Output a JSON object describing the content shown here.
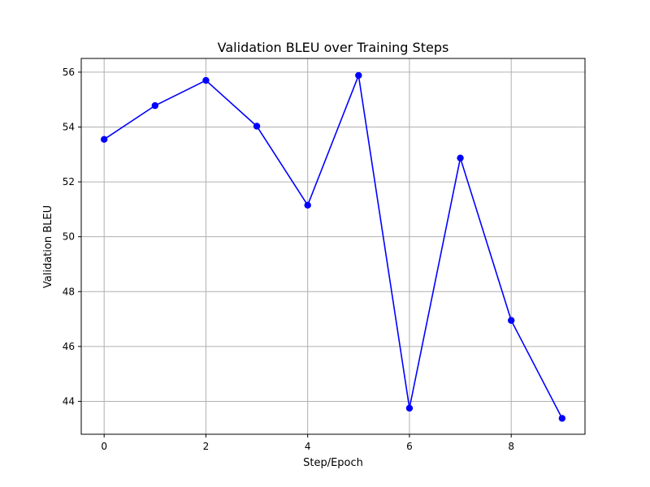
{
  "chart_data": {
    "type": "line",
    "title": "Validation BLEU over Training Steps",
    "xlabel": "Step/Epoch",
    "ylabel": "Validation BLEU",
    "x": [
      0,
      1,
      2,
      3,
      4,
      5,
      6,
      7,
      8,
      9
    ],
    "series": [
      {
        "values": [
          53.55,
          54.78,
          55.7,
          54.03,
          51.15,
          55.88,
          43.75,
          52.87,
          46.95,
          43.38
        ],
        "color": "#0000ff",
        "marker": "circle"
      }
    ],
    "xlim": [
      -0.45,
      9.45
    ],
    "ylim": [
      42.8,
      56.5
    ],
    "xticks": [
      0,
      2,
      4,
      6,
      8
    ],
    "yticks": [
      44,
      46,
      48,
      50,
      52,
      54,
      56
    ],
    "grid": true,
    "legend": "none"
  }
}
